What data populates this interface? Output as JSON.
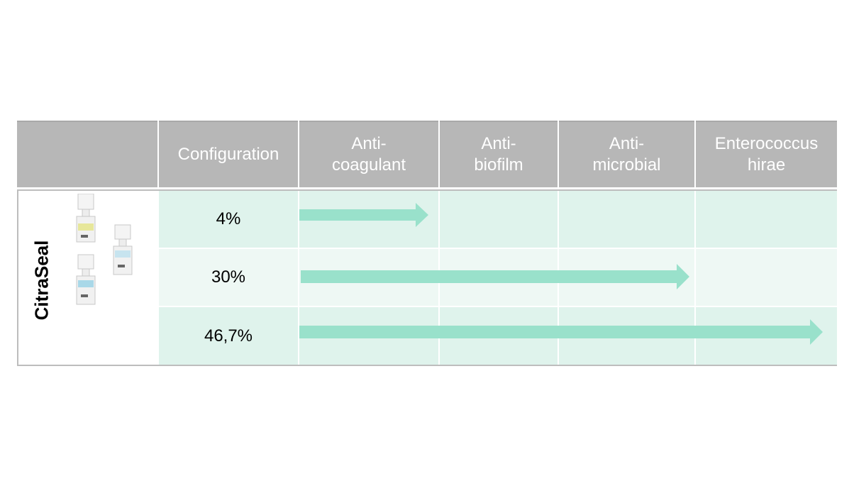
{
  "table": {
    "headers": [
      "",
      "Configuration",
      "Anti-\ncoagulant",
      "Anti-\nbiofilm",
      "Anti-\nmicrobial",
      "Enterococcus\nhirae"
    ],
    "product": "CitraSeal",
    "rows": [
      {
        "configuration": "4%",
        "covers_until_column": 2
      },
      {
        "configuration": "30%",
        "covers_until_column": 4
      },
      {
        "configuration": "46,7%",
        "covers_until_column": 5
      }
    ]
  },
  "colors": {
    "header_bg": "#b7b7b7",
    "row_bg_a": "#dff3ec",
    "row_bg_b": "#eef8f4",
    "arrow": "#99e1cb"
  }
}
